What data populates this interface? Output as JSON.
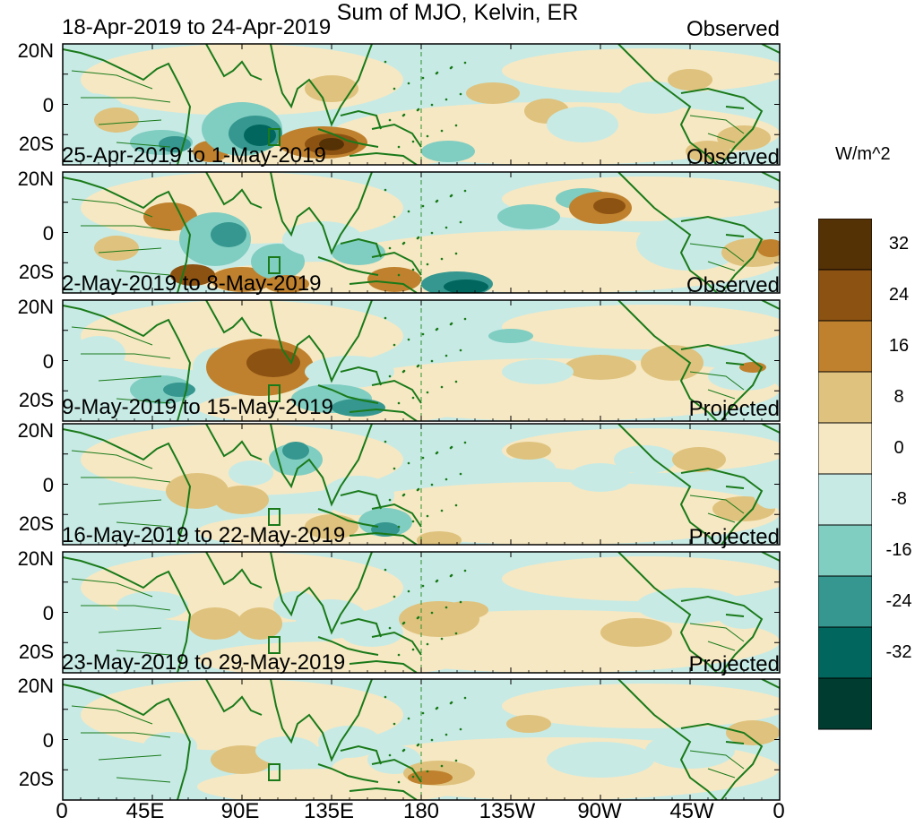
{
  "title": "Sum of MJO, Kelvin, ER",
  "lat_labels": [
    "20N",
    "0",
    "20S"
  ],
  "panels": [
    {
      "date_range": "18-Apr-2019 to 24-Apr-2019",
      "type": "Observed"
    },
    {
      "date_range": "25-Apr-2019 to 1-May-2019",
      "type": "Observed"
    },
    {
      "date_range": "2-May-2019 to 8-May-2019",
      "type": "Observed"
    },
    {
      "date_range": "9-May-2019 to 15-May-2019",
      "type": "Projected"
    },
    {
      "date_range": "16-May-2019 to 22-May-2019",
      "type": "Projected"
    },
    {
      "date_range": "23-May-2019 to 29-May-2019",
      "type": "Projected"
    }
  ],
  "lon_labels": [
    "0",
    "45E",
    "90E",
    "135E",
    "180",
    "135W",
    "90W",
    "45W",
    "0"
  ],
  "colorbar": {
    "unit": "W/m^2",
    "labels": [
      "32",
      "24",
      "16",
      "8",
      "0",
      "-8",
      "-16",
      "-24",
      "-32"
    ],
    "colors": [
      "#553206",
      "#8c5212",
      "#bf812d",
      "#dfc27d",
      "#f6e8c3",
      "#c7eae5",
      "#80cdc1",
      "#35978f",
      "#01665e",
      "#003c30"
    ]
  },
  "colors": {
    "coast": "#1a7a1a",
    "frame": "#000000",
    "dateline": "#2f8f2f"
  }
}
